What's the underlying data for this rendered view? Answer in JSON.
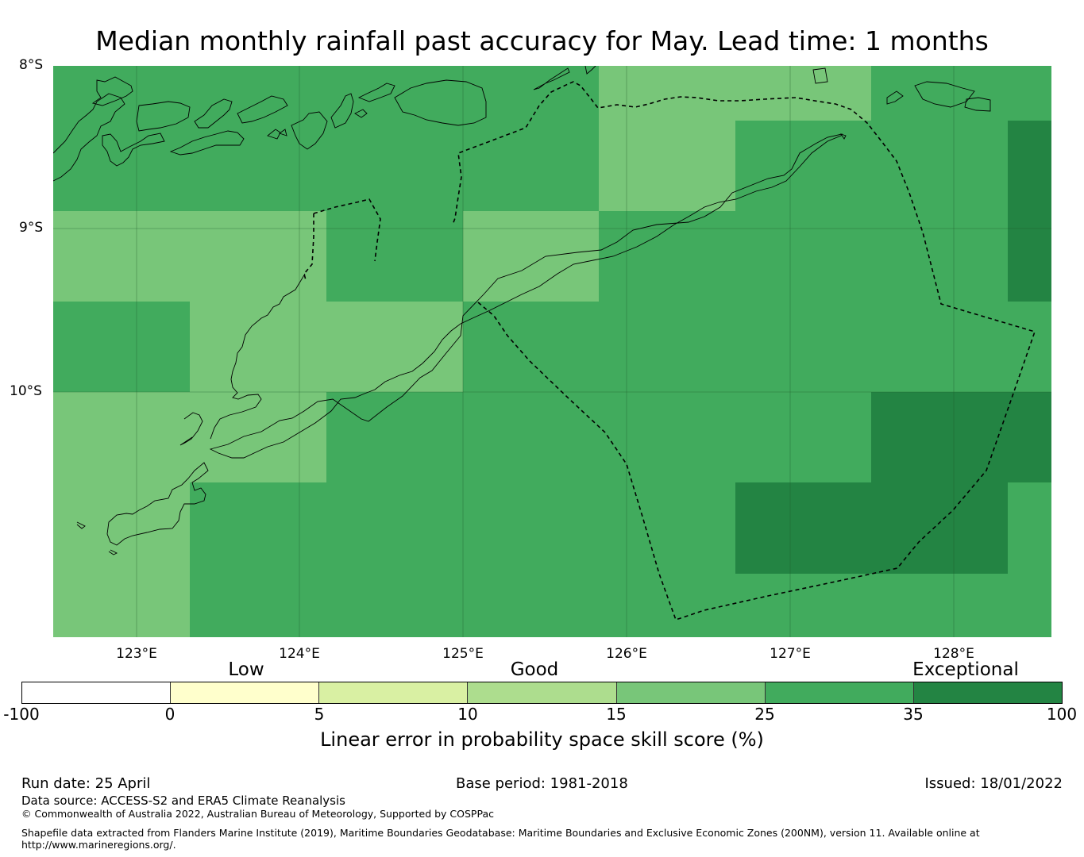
{
  "title": "Median monthly rainfall past accuracy for May. Lead time: 1 months",
  "map": {
    "lat_labels": [
      "8°S",
      "9°S",
      "10°S"
    ],
    "lon_labels": [
      "123°E",
      "124°E",
      "125°E",
      "126°E",
      "127°E",
      "128°E"
    ],
    "extent": {
      "lon_min": 122.5,
      "lon_max": 128.6,
      "lat_min": -11.5,
      "lat_max": -8.0
    },
    "grid_cell_deg": 0.833,
    "categories_by_color": {
      "15-25": "#78c679",
      "25-35": "#41ab5d",
      "35-100": "#238443"
    }
  },
  "colorbar": {
    "category_labels": [
      "Low",
      "Good",
      "Exceptional"
    ],
    "ticks": [
      "-100",
      "0",
      "5",
      "10",
      "15",
      "25",
      "35",
      "100"
    ],
    "colors": [
      "#ffffff",
      "#ffffcc",
      "#d9f0a3",
      "#addd8e",
      "#78c679",
      "#41ab5d",
      "#238443"
    ],
    "title": "Linear error in probability space skill score (%)"
  },
  "footer": {
    "run_date": "Run date: 25 April",
    "base_period": "Base period: 1981-2018",
    "issued": "Issued: 18/01/2022",
    "data_source": "Data source: ACCESS-S2 and ERA5 Climate Reanalysis",
    "copyright": "© Commonwealth of Australia 2022, Australian Bureau of Meteorology, Supported by COSPPac",
    "shapefile_line1": "Shapefile data extracted from Flanders Marine Institute (2019), Maritime Boundaries Geodatabase: Maritime Boundaries and Exclusive Economic Zones (200NM), version 11. Available online at",
    "shapefile_line2": "http://www.marineregions.org/."
  }
}
